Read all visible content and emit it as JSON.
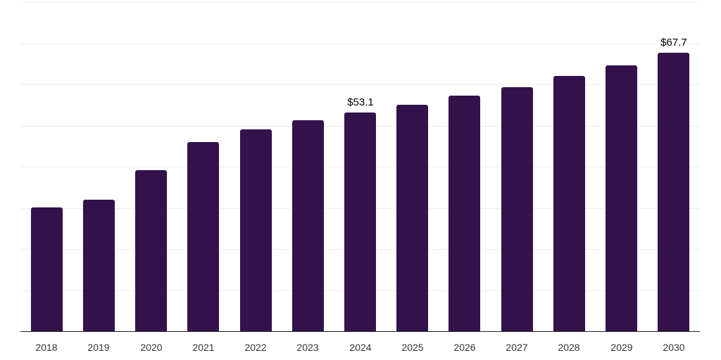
{
  "chart_data": {
    "type": "bar",
    "title": "",
    "xlabel": "",
    "ylabel": "",
    "categories": [
      "2018",
      "2019",
      "2020",
      "2021",
      "2022",
      "2023",
      "2024",
      "2025",
      "2026",
      "2027",
      "2028",
      "2029",
      "2030"
    ],
    "values": [
      30.1,
      31.9,
      39.2,
      46.0,
      49.0,
      51.3,
      53.1,
      55.1,
      57.3,
      59.3,
      62.1,
      64.7,
      67.7
    ],
    "data_labels": [
      {
        "category": "2024",
        "text": "$53.1"
      },
      {
        "category": "2030",
        "text": "$67.7"
      }
    ],
    "ylim": [
      0,
      80
    ],
    "grid": true,
    "grid_step": 10,
    "legend": false,
    "colors": {
      "bar": "#33124b",
      "grid": "#efefef",
      "axis_line": "#222222",
      "tick_label": "#333333",
      "data_label": "#000000",
      "background": "#ffffff"
    }
  }
}
